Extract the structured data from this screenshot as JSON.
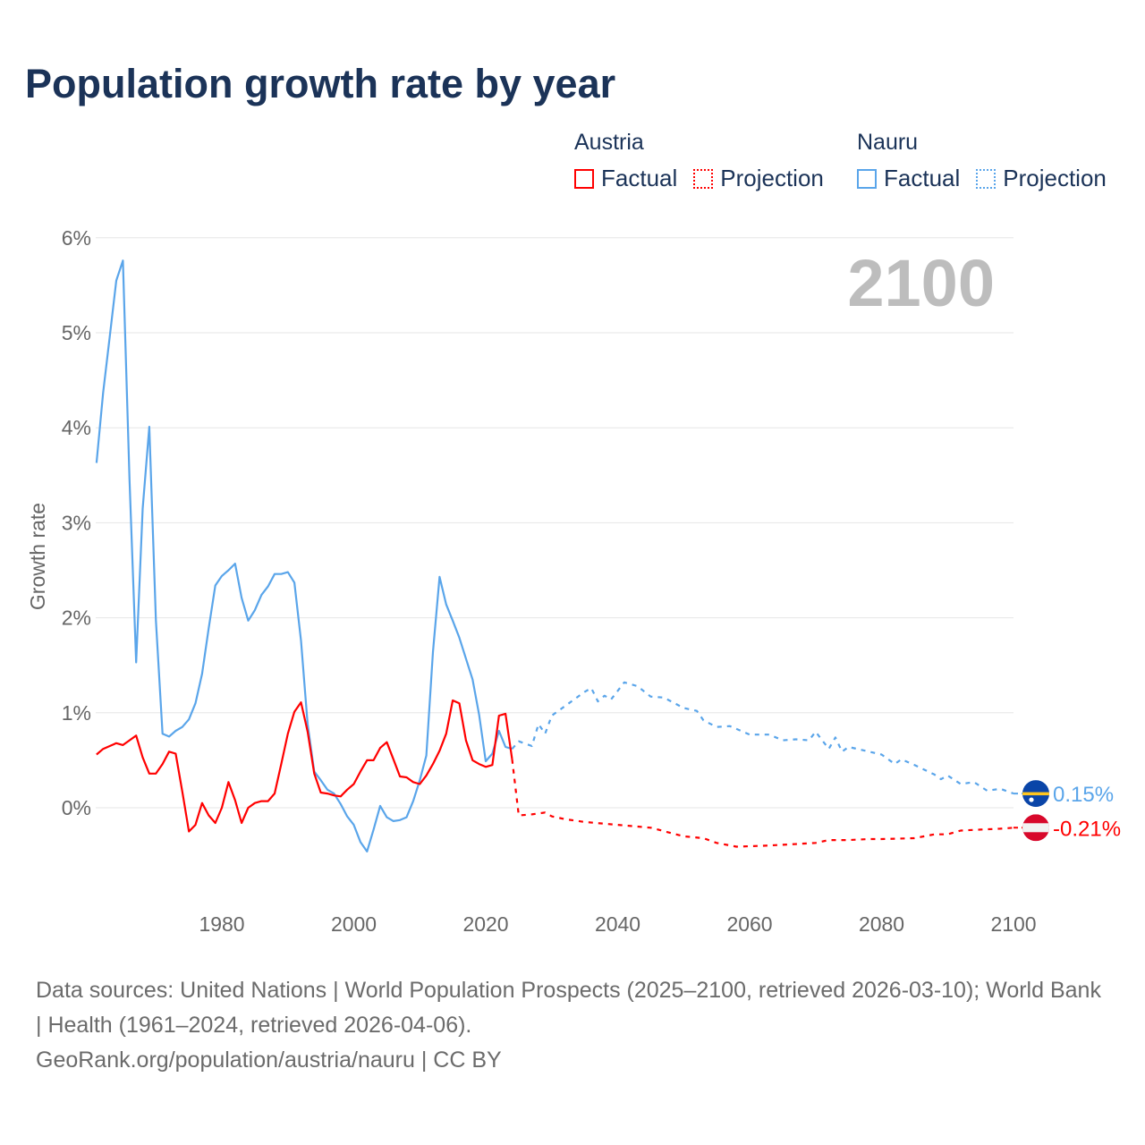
{
  "chart_data": {
    "type": "line",
    "title": "Population growth rate by year",
    "xlabel": "",
    "ylabel": "Growth rate",
    "xlim": [
      1961,
      2100
    ],
    "ylim": [
      -0.95,
      6.3
    ],
    "x_ticks": [
      1980,
      2000,
      2020,
      2040,
      2060,
      2080,
      2100
    ],
    "x_tick_labels": [
      "1980",
      "2000",
      "2020",
      "2040",
      "2060",
      "2080",
      "2100"
    ],
    "y_ticks": [
      0,
      1,
      2,
      3,
      4,
      5,
      6
    ],
    "y_tick_labels": [
      "0%",
      "1%",
      "2%",
      "3%",
      "4%",
      "5%",
      "6%"
    ],
    "grid": true,
    "year_label": "2100",
    "legend": {
      "placement": "top-right",
      "groups": [
        {
          "name": "Austria",
          "factual": "Factual",
          "projection": "Projection",
          "color": "#ff0000"
        },
        {
          "name": "Nauru",
          "factual": "Factual",
          "projection": "Projection",
          "color": "#5aa5ea"
        }
      ]
    },
    "series": [
      {
        "name": "Nauru Factual",
        "color": "#5aa5ea",
        "dashed": false,
        "x": [
          1961,
          1962,
          1963,
          1964,
          1965,
          1966,
          1967,
          1968,
          1969,
          1970,
          1971,
          1972,
          1973,
          1974,
          1975,
          1976,
          1977,
          1978,
          1979,
          1980,
          1981,
          1982,
          1983,
          1984,
          1985,
          1986,
          1987,
          1988,
          1989,
          1990,
          1991,
          1992,
          1993,
          1994,
          1995,
          1996,
          1997,
          1998,
          1999,
          2000,
          2001,
          2002,
          2003,
          2004,
          2005,
          2006,
          2007,
          2008,
          2009,
          2010,
          2011,
          2012,
          2013,
          2014,
          2015,
          2016,
          2017,
          2018,
          2019,
          2020,
          2021,
          2022,
          2023,
          2024
        ],
        "y": [
          3.63,
          4.37,
          4.96,
          5.55,
          5.76,
          3.45,
          1.53,
          3.15,
          4.01,
          1.97,
          0.78,
          0.75,
          0.81,
          0.85,
          0.93,
          1.1,
          1.41,
          1.89,
          2.34,
          2.44,
          2.5,
          2.57,
          2.21,
          1.97,
          2.08,
          2.24,
          2.33,
          2.46,
          2.46,
          2.48,
          2.37,
          1.76,
          0.88,
          0.38,
          0.29,
          0.19,
          0.15,
          0.04,
          -0.09,
          -0.18,
          -0.36,
          -0.46,
          -0.23,
          0.02,
          -0.1,
          -0.14,
          -0.13,
          -0.1,
          0.07,
          0.29,
          0.55,
          1.64,
          2.43,
          2.14,
          1.97,
          1.79,
          1.57,
          1.35,
          0.98,
          0.49,
          0.57,
          0.81,
          0.64,
          0.62
        ]
      },
      {
        "name": "Nauru Projection",
        "color": "#5aa5ea",
        "dashed": true,
        "x": [
          2024,
          2025,
          2027,
          2028,
          2029,
          2030,
          2032,
          2035,
          2036,
          2037,
          2038,
          2039,
          2041,
          2043,
          2045,
          2047,
          2050,
          2052,
          2053,
          2055,
          2057,
          2060,
          2063,
          2065,
          2067,
          2069,
          2070,
          2072,
          2073,
          2074,
          2075,
          2080,
          2082,
          2083,
          2085,
          2088,
          2089,
          2090,
          2092,
          2094,
          2096,
          2098,
          2100
        ],
        "y": [
          0.62,
          0.7,
          0.65,
          0.88,
          0.78,
          0.97,
          1.07,
          1.22,
          1.26,
          1.12,
          1.18,
          1.14,
          1.32,
          1.28,
          1.17,
          1.16,
          1.05,
          1.02,
          0.92,
          0.85,
          0.86,
          0.77,
          0.77,
          0.71,
          0.72,
          0.71,
          0.8,
          0.62,
          0.74,
          0.59,
          0.64,
          0.56,
          0.46,
          0.51,
          0.45,
          0.35,
          0.3,
          0.34,
          0.25,
          0.27,
          0.18,
          0.2,
          0.15
        ]
      },
      {
        "name": "Austria Factual",
        "color": "#ff0000",
        "dashed": false,
        "x": [
          1961,
          1962,
          1963,
          1964,
          1965,
          1966,
          1967,
          1968,
          1969,
          1970,
          1971,
          1972,
          1973,
          1974,
          1975,
          1976,
          1977,
          1978,
          1979,
          1980,
          1981,
          1982,
          1983,
          1984,
          1985,
          1986,
          1987,
          1988,
          1989,
          1990,
          1991,
          1992,
          1993,
          1994,
          1995,
          1996,
          1997,
          1998,
          1999,
          2000,
          2001,
          2002,
          2003,
          2004,
          2005,
          2006,
          2007,
          2008,
          2009,
          2010,
          2011,
          2012,
          2013,
          2014,
          2015,
          2016,
          2017,
          2018,
          2019,
          2020,
          2021,
          2022,
          2023,
          2024
        ],
        "y": [
          0.56,
          0.62,
          0.65,
          0.68,
          0.66,
          0.71,
          0.76,
          0.53,
          0.36,
          0.36,
          0.46,
          0.59,
          0.57,
          0.17,
          -0.25,
          -0.18,
          0.05,
          -0.08,
          -0.16,
          0.0,
          0.27,
          0.08,
          -0.16,
          0.0,
          0.05,
          0.07,
          0.07,
          0.15,
          0.46,
          0.78,
          1.01,
          1.11,
          0.8,
          0.36,
          0.16,
          0.15,
          0.13,
          0.12,
          0.19,
          0.25,
          0.38,
          0.5,
          0.5,
          0.63,
          0.69,
          0.51,
          0.33,
          0.32,
          0.27,
          0.25,
          0.34,
          0.46,
          0.6,
          0.78,
          1.13,
          1.1,
          0.71,
          0.5,
          0.46,
          0.43,
          0.45,
          0.97,
          0.99,
          0.51
        ]
      },
      {
        "name": "Austria Projection",
        "color": "#ff0000",
        "dashed": true,
        "x": [
          2024,
          2025,
          2027,
          2029,
          2030,
          2032,
          2035,
          2040,
          2045,
          2050,
          2053,
          2055,
          2058,
          2062,
          2065,
          2070,
          2072,
          2075,
          2078,
          2080,
          2085,
          2088,
          2090,
          2092,
          2095,
          2098,
          2100
        ],
        "y": [
          0.51,
          -0.08,
          -0.07,
          -0.05,
          -0.09,
          -0.12,
          -0.15,
          -0.18,
          -0.21,
          -0.3,
          -0.32,
          -0.37,
          -0.41,
          -0.4,
          -0.39,
          -0.37,
          -0.34,
          -0.34,
          -0.33,
          -0.33,
          -0.32,
          -0.28,
          -0.28,
          -0.24,
          -0.23,
          -0.22,
          -0.21
        ]
      }
    ],
    "end_labels": [
      {
        "country": "Nauru",
        "value": 0.15,
        "text": "0.15%",
        "color": "#5aa5ea"
      },
      {
        "country": "Austria",
        "value": -0.21,
        "text": "-0.21%",
        "color": "#ff0000"
      }
    ]
  },
  "footer": {
    "sources": "Data sources: United Nations | World Population Prospects (2025–2100, retrieved 2026-03-10); World Bank | Health (1961–2024, retrieved 2026-04-06).",
    "credit": "GeoRank.org/population/austria/nauru | CC BY"
  }
}
